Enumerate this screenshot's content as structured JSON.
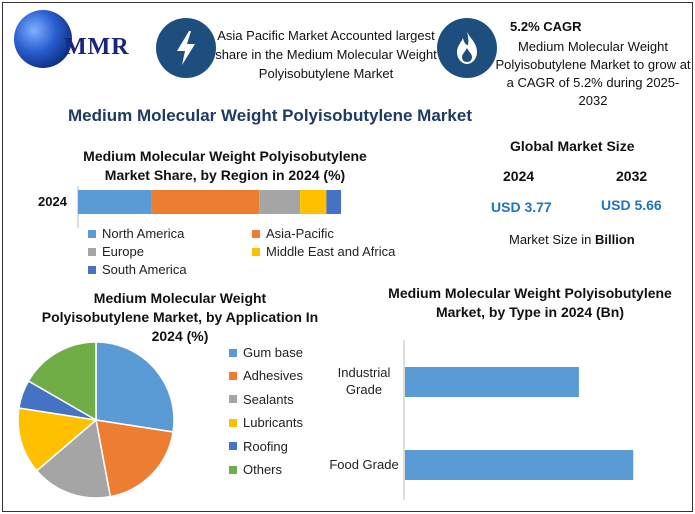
{
  "logo": {
    "text": "MMR"
  },
  "header": {
    "box1_text": "Asia Pacific Market Accounted largest share in the Medium Molecular Weight Polyisobutylene Market",
    "box1_icon": "lightning-icon",
    "box2_title": "5.2% CAGR",
    "box2_text": "Medium Molecular Weight Polyisobutylene Market to grow at a CAGR of 5.2% during 2025-2032",
    "box2_icon": "flame-icon"
  },
  "main_title": "Medium Molecular Weight Polyisobutylene Market",
  "global_market": {
    "title": "Global Market Size",
    "year1": "2024",
    "year2": "2032",
    "value1": "USD 3.77",
    "value2": "USD 5.66",
    "note_prefix": "Market Size in ",
    "note_bold": "Billion"
  },
  "colors": {
    "blue": "#5b9bd5",
    "orange": "#ed7d31",
    "gray": "#a5a5a5",
    "yellow": "#ffc000",
    "darkblue": "#4472c4",
    "green": "#70ad47",
    "icon_bg": "#1d4e7e",
    "title": "#1f3a64",
    "value": "#1e73be"
  },
  "chart_data": [
    {
      "type": "bar",
      "orientation": "horizontal-stacked",
      "title": "Medium Molecular Weight Polyisobutylene Market Share, by Region in 2024 (%)",
      "categories": [
        "2024"
      ],
      "series": [
        {
          "name": "North America",
          "values": [
            25
          ],
          "color": "#5b9bd5"
        },
        {
          "name": "Asia-Pacific",
          "values": [
            37
          ],
          "color": "#ed7d31"
        },
        {
          "name": "Europe",
          "values": [
            14
          ],
          "color": "#a5a5a5"
        },
        {
          "name": "Middle East and Africa",
          "values": [
            9
          ],
          "color": "#ffc000"
        },
        {
          "name": "South America",
          "values": [
            5
          ],
          "color": "#4472c4"
        }
      ]
    },
    {
      "type": "pie",
      "title": "Medium Molecular Weight Polyisobutylene Market, by Application In 2024 (%)",
      "labels": [
        "Gum base",
        "Adhesives",
        "Sealants",
        "Lubricants",
        "Roofing",
        "Others"
      ],
      "values": [
        28,
        20,
        17,
        14,
        6,
        17
      ],
      "colors": [
        "#5b9bd5",
        "#ed7d31",
        "#a5a5a5",
        "#ffc000",
        "#4472c4",
        "#70ad47"
      ],
      "legend": "right"
    },
    {
      "type": "bar",
      "orientation": "horizontal",
      "title": "Medium Molecular Weight Polyisobutylene Market, by Type in 2024 (Bn)",
      "categories": [
        "Industrial Grade",
        "Food Grade"
      ],
      "values": [
        1.6,
        2.1
      ],
      "xlim": [
        0,
        2.3
      ],
      "color": "#5b9bd5"
    }
  ]
}
